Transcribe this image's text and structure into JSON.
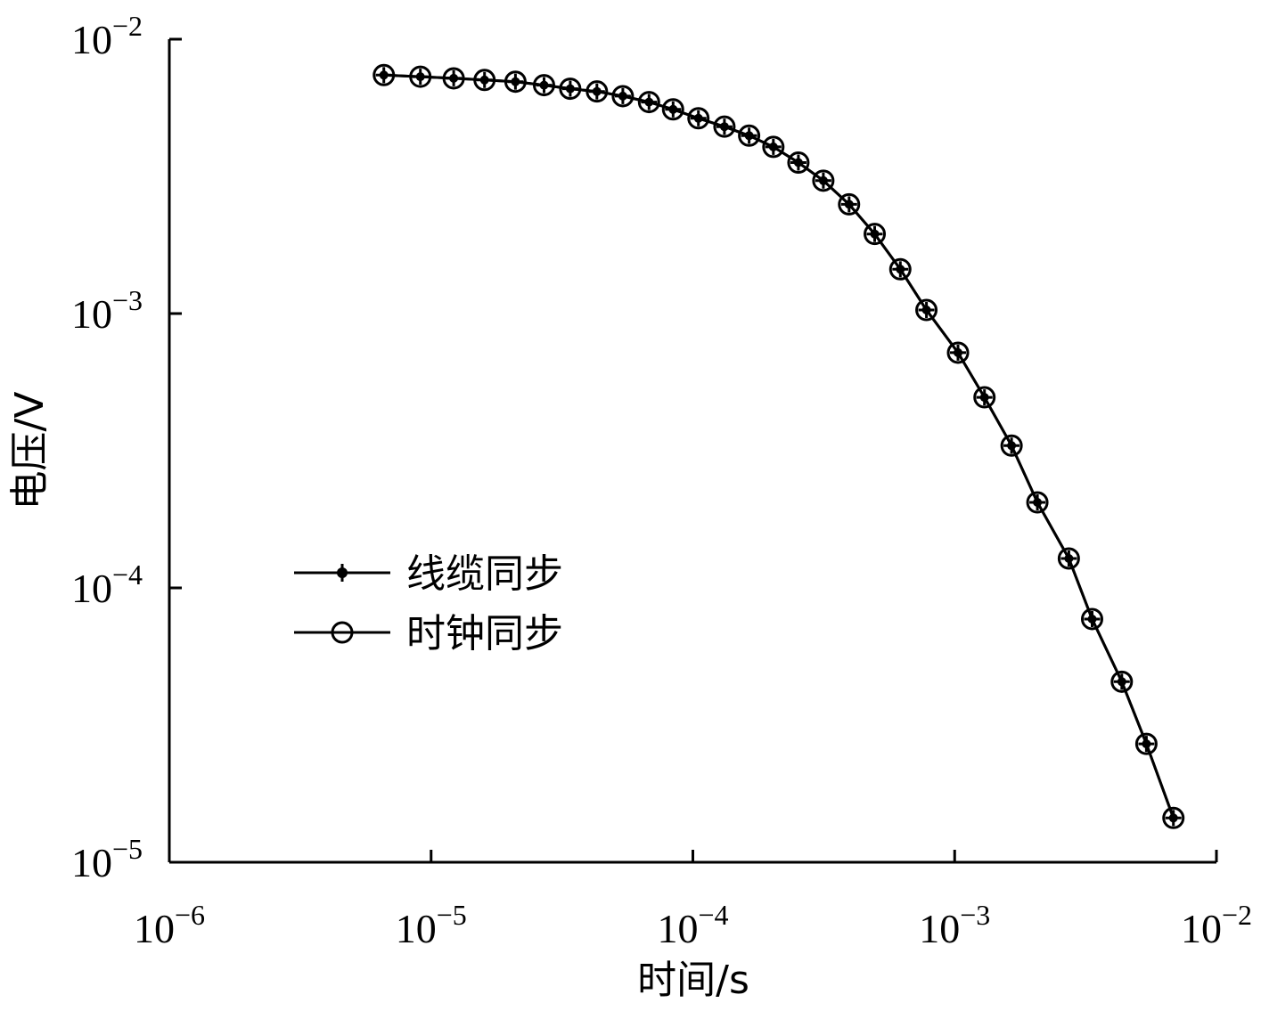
{
  "chart_data": {
    "type": "line",
    "xlabel": "时间/s",
    "ylabel": "电压/V",
    "x_scale": "log",
    "y_scale": "log",
    "xlim": [
      1e-06,
      0.01
    ],
    "ylim": [
      1e-05,
      0.01
    ],
    "x_ticks": [
      {
        "base": "10",
        "exp": "−6",
        "value": 1e-06
      },
      {
        "base": "10",
        "exp": "−5",
        "value": 1e-05
      },
      {
        "base": "10",
        "exp": "−4",
        "value": 0.0001
      },
      {
        "base": "10",
        "exp": "−3",
        "value": 0.001
      },
      {
        "base": "10",
        "exp": "−2",
        "value": 0.01
      }
    ],
    "y_ticks": [
      {
        "base": "10",
        "exp": "−5",
        "value": 1e-05
      },
      {
        "base": "10",
        "exp": "−4",
        "value": 0.0001
      },
      {
        "base": "10",
        "exp": "−3",
        "value": 0.001
      },
      {
        "base": "10",
        "exp": "−2",
        "value": 0.01
      }
    ],
    "grid": false,
    "legend_position": "center-left",
    "x": [
      6.6e-06,
      9.1e-06,
      1.22e-05,
      1.6e-05,
      2.1e-05,
      2.7e-05,
      3.4e-05,
      4.3e-05,
      5.4e-05,
      6.8e-05,
      8.4e-05,
      0.000105,
      0.000132,
      0.000164,
      0.000203,
      0.000253,
      0.000315,
      0.000395,
      0.000495,
      0.00062,
      0.00078,
      0.00103,
      0.0013,
      0.00165,
      0.00207,
      0.00273,
      0.00335,
      0.00435,
      0.0054,
      0.00685
    ],
    "series": [
      {
        "name": "线缆同步",
        "marker": "plus-dot",
        "color": "#000000",
        "values": [
          0.0074,
          0.0073,
          0.0072,
          0.0071,
          0.007,
          0.0068,
          0.0066,
          0.00645,
          0.0062,
          0.0059,
          0.00555,
          0.00515,
          0.0048,
          0.00445,
          0.00405,
          0.00355,
          0.00305,
          0.0025,
          0.00195,
          0.00145,
          0.00103,
          0.00072,
          0.000495,
          0.00033,
          0.000205,
          0.000128,
          7.7e-05,
          4.55e-05,
          2.7e-05,
          1.45e-05
        ]
      },
      {
        "name": "时钟同步",
        "marker": "circle",
        "color": "#000000",
        "values": [
          0.0074,
          0.0073,
          0.0072,
          0.0071,
          0.007,
          0.0068,
          0.0066,
          0.00645,
          0.0062,
          0.0059,
          0.00555,
          0.00515,
          0.0048,
          0.00445,
          0.00405,
          0.00355,
          0.00305,
          0.0025,
          0.00195,
          0.00145,
          0.00103,
          0.00072,
          0.000495,
          0.00033,
          0.000205,
          0.000128,
          7.7e-05,
          4.55e-05,
          2.7e-05,
          1.45e-05
        ]
      }
    ]
  }
}
